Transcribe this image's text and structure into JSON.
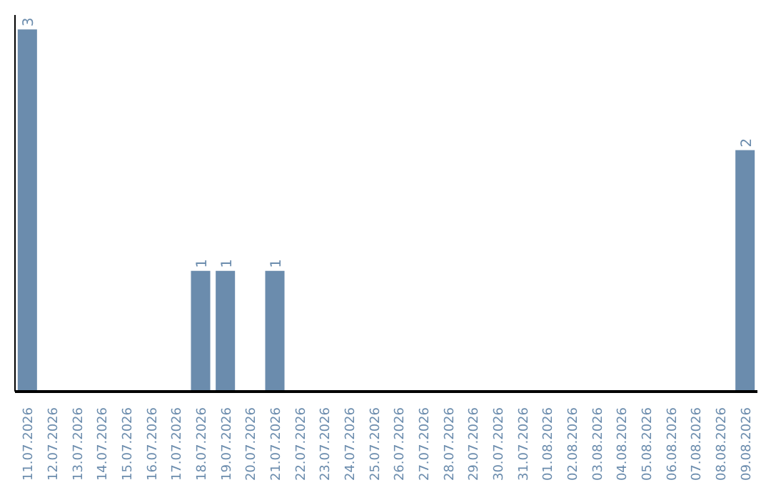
{
  "chart_data": {
    "type": "bar",
    "categories": [
      "11.07.2026",
      "12.07.2026",
      "13.07.2026",
      "14.07.2026",
      "15.07.2026",
      "16.07.2026",
      "17.07.2026",
      "18.07.2026",
      "19.07.2026",
      "20.07.2026",
      "21.07.2026",
      "22.07.2026",
      "23.07.2026",
      "24.07.2026",
      "25.07.2026",
      "26.07.2026",
      "27.07.2026",
      "28.07.2026",
      "29.07.2026",
      "30.07.2026",
      "31.07.2026",
      "01.08.2026",
      "02.08.2026",
      "03.08.2026",
      "04.08.2026",
      "05.08.2026",
      "06.08.2026",
      "07.08.2026",
      "08.08.2026",
      "09.08.2026"
    ],
    "values": [
      3,
      0,
      0,
      0,
      0,
      0,
      0,
      1,
      1,
      0,
      1,
      0,
      0,
      0,
      0,
      0,
      0,
      0,
      0,
      0,
      0,
      0,
      0,
      0,
      0,
      0,
      0,
      0,
      0,
      2
    ],
    "value_labels": [
      "3",
      null,
      null,
      null,
      null,
      null,
      null,
      "1",
      "1",
      null,
      "1",
      null,
      null,
      null,
      null,
      null,
      null,
      null,
      null,
      null,
      null,
      null,
      null,
      null,
      null,
      null,
      null,
      null,
      null,
      "2"
    ],
    "color": "#6b8cad",
    "tick_labels": "x"
  }
}
